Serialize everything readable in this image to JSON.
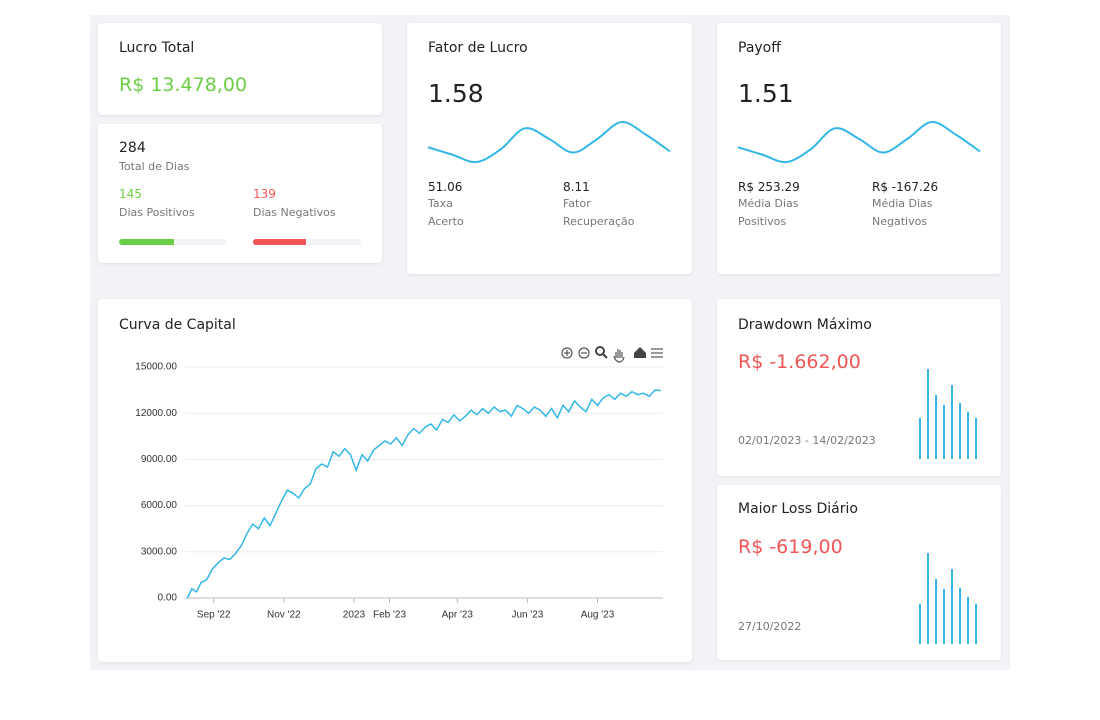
{
  "lucro_total": {
    "title": "Lucro Total",
    "value": "R$ 13.478,00"
  },
  "dias": {
    "total": 284,
    "total_label": "Total de Dias",
    "positivos": 145,
    "positivos_label": "Dias Positivos",
    "positivos_color": "#6bcf45",
    "negativos": 139,
    "negativos_label": "Dias Negativos",
    "negativos_color": "#f25555"
  },
  "fator_lucro": {
    "title": "Fator de Lucro",
    "value": 1.58,
    "color": "#33b7e6",
    "sparkline": [
      14,
      7,
      0,
      12,
      32,
      22,
      9,
      22,
      38,
      26,
      10
    ],
    "stats": [
      {
        "value": 51.06,
        "label": "Taxa Acerto"
      },
      {
        "value": 8.11,
        "label": "Fator Recuperação"
      }
    ]
  },
  "payoff": {
    "title": "Payoff",
    "value": 1.51,
    "color": "#33b7e6",
    "sparkline": [
      14,
      7,
      0,
      12,
      32,
      22,
      9,
      22,
      38,
      26,
      10
    ],
    "stats": [
      {
        "value": "R$ 253.29",
        "label": "Média Dias Positivos"
      },
      {
        "value": "R$ -167.26",
        "label": "Média Dias Negativos"
      }
    ]
  },
  "chart_data": {
    "type": "line",
    "title": "Curva de Capital",
    "x": [
      8,
      12,
      16,
      20,
      25,
      30,
      35,
      40,
      45,
      50,
      55,
      60,
      65,
      70,
      75,
      80,
      85,
      90,
      95,
      100,
      105,
      110,
      115,
      120,
      125,
      130,
      135,
      140,
      145,
      150,
      155,
      160,
      165,
      170,
      175,
      180,
      185,
      190,
      195,
      200,
      205,
      210,
      215,
      220,
      225,
      230,
      235,
      240,
      245,
      250,
      255,
      260,
      265,
      270,
      275,
      280,
      285,
      290,
      295,
      300,
      305,
      310,
      315,
      320,
      325,
      330,
      335,
      340,
      345,
      350,
      355,
      360,
      365,
      370,
      375,
      380,
      385,
      390,
      395,
      400,
      405,
      410,
      415,
      420
    ],
    "series": [
      {
        "color": "#33b7e6",
        "values": [
          0,
          600,
          400,
          1000,
          1200,
          1900,
          2300,
          2600,
          2500,
          2900,
          3400,
          4200,
          4800,
          4500,
          5200,
          4700,
          5500,
          6300,
          7000,
          6800,
          6500,
          7100,
          7400,
          8400,
          8700,
          8500,
          9500,
          9200,
          9700,
          9300,
          8300,
          9300,
          8900,
          9600,
          9900,
          10200,
          10000,
          10400,
          9900,
          10600,
          11000,
          10700,
          11100,
          11300,
          10900,
          11600,
          11400,
          11900,
          11500,
          11800,
          12200,
          11900,
          12300,
          12000,
          12400,
          12100,
          12200,
          11800,
          12500,
          12300,
          12000,
          12400,
          12200,
          11800,
          12300,
          11700,
          12500,
          12100,
          12800,
          12400,
          12100,
          12900,
          12500,
          13000,
          13200,
          12900,
          13300,
          13100,
          13400,
          13200,
          13300,
          13100,
          13500,
          13478
        ]
      }
    ],
    "xlim": [
      6,
      422
    ],
    "xticks": [
      {
        "value": 31,
        "label": "Sep '22"
      },
      {
        "value": 92,
        "label": "Nov '22"
      },
      {
        "value": 153,
        "label": "2023"
      },
      {
        "value": 184,
        "label": "Feb '23"
      },
      {
        "value": 243,
        "label": "Apr '23"
      },
      {
        "value": 304,
        "label": "Jun '23"
      },
      {
        "value": 365,
        "label": "Aug '23"
      }
    ],
    "ylim": [
      0,
      15000
    ],
    "yticks": [
      {
        "value": 0,
        "label": "0.00"
      },
      {
        "value": 3000,
        "label": "3000.00"
      },
      {
        "value": 6000,
        "label": "6000.00"
      },
      {
        "value": 9000,
        "label": "9000.00"
      },
      {
        "value": 12000,
        "label": "12000.00"
      },
      {
        "value": 15000,
        "label": "15000.00"
      }
    ],
    "grid": true
  },
  "drawdown": {
    "title": "Drawdown Máximo",
    "value": "R$ -1.662,00",
    "period": "02/01/2023 - 14/02/2023",
    "color": "#33b7e6",
    "bars": [
      41,
      90,
      64,
      54,
      74,
      56,
      47,
      41
    ]
  },
  "maior_loss": {
    "title": "Maior Loss Diário",
    "value": "R$ -619,00",
    "period": "27/10/2022",
    "color": "#33b7e6",
    "bars": [
      40,
      91,
      65,
      55,
      75,
      56,
      47,
      40
    ]
  }
}
